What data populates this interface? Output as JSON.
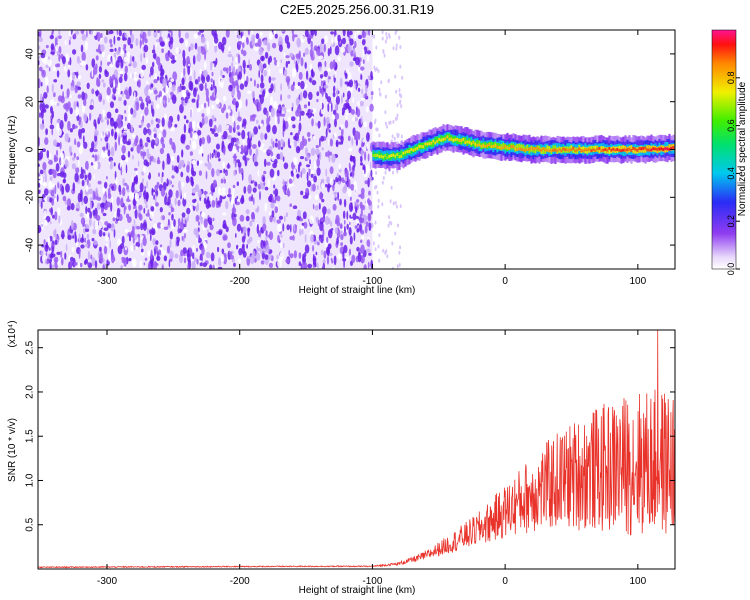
{
  "title": "C2E5.2025.256.00.31.R19",
  "colors": {
    "purple": "#7a2cf0",
    "purple_light": "#cdb6f8",
    "red_line": "#e8322a",
    "axis": "#000000"
  },
  "chart_data": [
    {
      "type": "heatmap",
      "xlabel": "Height of straight line (km)",
      "ylabel": "Frequency (Hz)",
      "xlim": [
        -352,
        128
      ],
      "ylim": [
        -50,
        50
      ],
      "xticks": [
        -300,
        -200,
        -100,
        0,
        100
      ],
      "xtick_labels": [
        "-300",
        "-200",
        "-100",
        "0",
        "100"
      ],
      "yticks": [
        -40,
        -20,
        0,
        20,
        40
      ],
      "ytick_labels": [
        "-40",
        "-20",
        "0",
        "20",
        "40"
      ],
      "colorbar": {
        "label": "Normalized spectral amplitude",
        "range": [
          0,
          1
        ],
        "ticks": [
          0.0,
          0.2,
          0.4,
          0.6,
          0.8
        ],
        "tick_labels": [
          "0.0",
          "0.2",
          "0.4",
          "0.6",
          "0.8"
        ]
      },
      "noise_region": {
        "x_from": -352,
        "x_to": -100,
        "amplitude": 0.15
      },
      "ridge": [
        {
          "x": -100,
          "y": -2
        },
        {
          "x": -90,
          "y": -3
        },
        {
          "x": -80,
          "y": -2.5
        },
        {
          "x": -70,
          "y": 0
        },
        {
          "x": -55,
          "y": 3
        },
        {
          "x": -45,
          "y": 5
        },
        {
          "x": -35,
          "y": 4
        },
        {
          "x": -20,
          "y": 2
        },
        {
          "x": 0,
          "y": 1
        },
        {
          "x": 20,
          "y": 0
        },
        {
          "x": 60,
          "y": 0
        },
        {
          "x": 100,
          "y": 0
        },
        {
          "x": 128,
          "y": 0.5
        }
      ]
    },
    {
      "type": "line",
      "xlabel": "Height of straight line (km)",
      "ylabel": "SNR (10 * v/v)",
      "y_multiplier": "(x10⁴)",
      "xlim": [
        -352,
        128
      ],
      "ylim": [
        0,
        2.7
      ],
      "xticks": [
        -300,
        -200,
        -100,
        0,
        100
      ],
      "xtick_labels": [
        "-300",
        "-200",
        "-100",
        "0",
        "100"
      ],
      "yticks": [
        0.5,
        1.0,
        1.5,
        2.0,
        2.5
      ],
      "ytick_labels": [
        "0.5",
        "1.0",
        "1.5",
        "2.0",
        "2.5"
      ],
      "series": [
        {
          "color": "#e8322a",
          "trend": [
            {
              "x": -352,
              "y": 0.02
            },
            {
              "x": -150,
              "y": 0.03
            },
            {
              "x": -100,
              "y": 0.03
            },
            {
              "x": -80,
              "y": 0.06
            },
            {
              "x": -60,
              "y": 0.15
            },
            {
              "x": -40,
              "y": 0.3
            },
            {
              "x": -20,
              "y": 0.45
            },
            {
              "x": 0,
              "y": 0.65
            },
            {
              "x": 20,
              "y": 0.85
            },
            {
              "x": 40,
              "y": 1.0
            },
            {
              "x": 60,
              "y": 1.1
            },
            {
              "x": 80,
              "y": 1.15
            },
            {
              "x": 100,
              "y": 1.2
            },
            {
              "x": 128,
              "y": 1.2
            }
          ],
          "peak": {
            "x": 115,
            "y": 2.7
          }
        }
      ]
    }
  ]
}
